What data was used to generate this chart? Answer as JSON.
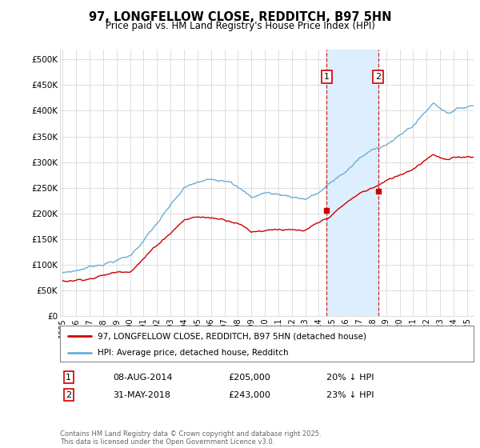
{
  "title": "97, LONGFELLOW CLOSE, REDDITCH, B97 5HN",
  "subtitle": "Price paid vs. HM Land Registry's House Price Index (HPI)",
  "legend_line1": "97, LONGFELLOW CLOSE, REDDITCH, B97 5HN (detached house)",
  "legend_line2": "HPI: Average price, detached house, Redditch",
  "footer": "Contains HM Land Registry data © Crown copyright and database right 2025.\nThis data is licensed under the Open Government Licence v3.0.",
  "annotation1": {
    "label": "1",
    "date": "08-AUG-2014",
    "price": "£205,000",
    "info": "20% ↓ HPI"
  },
  "annotation2": {
    "label": "2",
    "date": "31-MAY-2018",
    "price": "£243,000",
    "info": "23% ↓ HPI"
  },
  "hpi_color": "#6aaed6",
  "price_color": "#cc0000",
  "annotation_color": "#cc0000",
  "bg_color": "#ffffff",
  "grid_color": "#d8d8d8",
  "span_color": "#ddeeff",
  "ylim": [
    0,
    520000
  ],
  "yticks": [
    0,
    50000,
    100000,
    150000,
    200000,
    250000,
    300000,
    350000,
    400000,
    450000,
    500000
  ],
  "x_start_year": 1995,
  "x_end_year": 2025,
  "sale1_year": 2014.58,
  "sale2_year": 2018.41,
  "sale1_price": 205000,
  "sale2_price": 243000
}
